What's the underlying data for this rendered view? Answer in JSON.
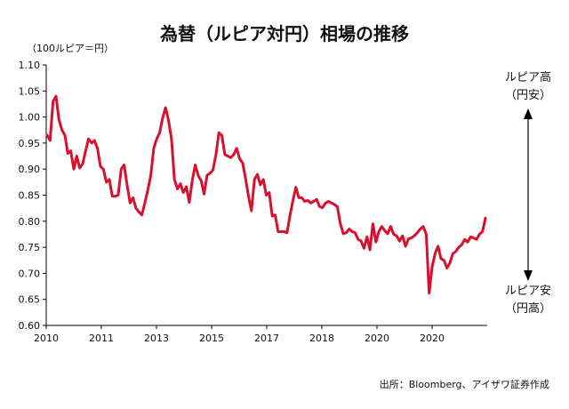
{
  "title": "為替（ルピア対円）相場の推移",
  "unit_label": "（100ルピア＝円）",
  "source": "出所：Bloomberg、アイザワ証券作成",
  "annotations": {
    "top_line1": "ルピア高",
    "top_line2": "（円安）",
    "bottom_line1": "ルピア安",
    "bottom_line2": "（円高）"
  },
  "colors": {
    "line": "#d90f2d",
    "axis": "#000000"
  },
  "chart_data": {
    "type": "line",
    "title": "為替（ルピア対円）相場の推移",
    "ylabel": "（100ルピア＝円）",
    "xlabel": "",
    "ylim": [
      0.6,
      1.1
    ],
    "y_ticks": [
      "0.60",
      "0.65",
      "0.70",
      "0.75",
      "0.80",
      "0.85",
      "0.90",
      "0.95",
      "1.00",
      "1.05",
      "1.10"
    ],
    "x_tick_labels": [
      "2010",
      "2011",
      "2013",
      "2015",
      "2017",
      "2018",
      "2020",
      "2020"
    ],
    "grid": false,
    "series": [
      {
        "values": [
          0.965,
          0.955,
          1.03,
          1.04,
          0.995,
          0.975,
          0.965,
          0.93,
          0.935,
          0.9,
          0.925,
          0.902,
          0.91,
          0.935,
          0.958,
          0.95,
          0.955,
          0.94,
          0.905,
          0.9,
          0.875,
          0.88,
          0.848,
          0.848,
          0.85,
          0.9,
          0.908,
          0.87,
          0.835,
          0.845,
          0.825,
          0.818,
          0.812,
          0.835,
          0.86,
          0.888,
          0.94,
          0.958,
          0.97,
          0.998,
          1.018,
          0.993,
          0.958,
          0.88,
          0.862,
          0.872,
          0.855,
          0.866,
          0.836,
          0.878,
          0.908,
          0.888,
          0.878,
          0.852,
          0.888,
          0.892,
          0.898,
          0.928,
          0.97,
          0.965,
          0.928,
          0.925,
          0.922,
          0.928,
          0.94,
          0.92,
          0.912,
          0.882,
          0.848,
          0.82,
          0.88,
          0.89,
          0.87,
          0.88,
          0.85,
          0.855,
          0.81,
          0.812,
          0.78,
          0.78,
          0.78,
          0.778,
          0.81,
          0.84,
          0.865,
          0.845,
          0.845,
          0.838,
          0.84,
          0.835,
          0.838,
          0.842,
          0.828,
          0.826,
          0.835,
          0.838,
          0.835,
          0.832,
          0.828,
          0.795,
          0.776,
          0.778,
          0.785,
          0.78,
          0.778,
          0.765,
          0.762,
          0.748,
          0.77,
          0.745,
          0.795,
          0.76,
          0.78,
          0.79,
          0.782,
          0.776,
          0.79,
          0.775,
          0.772,
          0.762,
          0.772,
          0.752,
          0.766,
          0.768,
          0.772,
          0.778,
          0.785,
          0.79,
          0.775,
          0.662,
          0.712,
          0.738,
          0.752,
          0.728,
          0.725,
          0.71,
          0.72,
          0.738,
          0.742,
          0.75,
          0.755,
          0.765,
          0.76,
          0.77,
          0.768,
          0.765,
          0.775,
          0.78,
          0.806
        ]
      }
    ]
  }
}
